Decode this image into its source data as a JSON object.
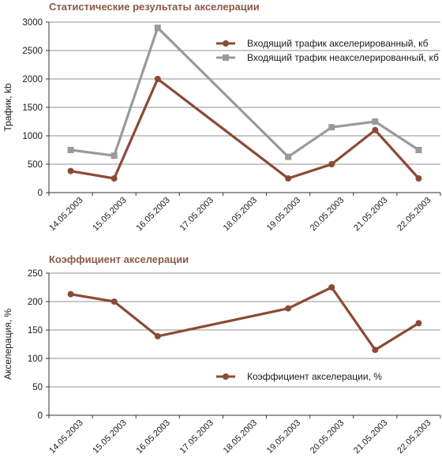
{
  "chart_data": [
    {
      "type": "line",
      "title": "Статистические результаты акселерации",
      "ylabel": "Трафик, kb",
      "xlabel": "",
      "categories": [
        "14.05.2003",
        "15.05.2003",
        "16.05.2003",
        "17.05.2003",
        "18.05.2003",
        "19.05.2003",
        "20.05.2003",
        "21.05.2003",
        "22.05.2003"
      ],
      "ylim": [
        0,
        3000
      ],
      "yticks": [
        0,
        500,
        1000,
        1500,
        2000,
        2500,
        3000
      ],
      "grid": "horizontal",
      "legend_position": "top-right",
      "series": [
        {
          "name": "Входящий трафик акселерированный, кб",
          "color": "#8b4a35",
          "marker": "circle",
          "values": [
            380,
            250,
            2000,
            null,
            null,
            250,
            500,
            1100,
            250
          ]
        },
        {
          "name": "Входящий трафик неакселерированный, кб",
          "color": "#9a9a9a",
          "marker": "square",
          "values": [
            750,
            650,
            2900,
            null,
            null,
            630,
            1150,
            1250,
            750
          ]
        }
      ]
    },
    {
      "type": "line",
      "title": "Коэффициент акселерации",
      "ylabel": "Акселерация, %",
      "xlabel": "",
      "categories": [
        "14.05.2003",
        "15.05.2003",
        "16.05.2003",
        "17.05.2003",
        "18.05.2003",
        "19.05.2003",
        "20.05.2003",
        "21.05.2003",
        "22.05.2003"
      ],
      "ylim": [
        0,
        250
      ],
      "yticks": [
        0,
        50,
        100,
        150,
        200,
        250
      ],
      "grid": "horizontal",
      "legend_position": "bottom-right",
      "series": [
        {
          "name": "Коэффициент акселерации, %",
          "color": "#8b4a35",
          "marker": "circle",
          "values": [
            213,
            200,
            139,
            null,
            null,
            188,
            225,
            115,
            162
          ]
        }
      ]
    }
  ]
}
